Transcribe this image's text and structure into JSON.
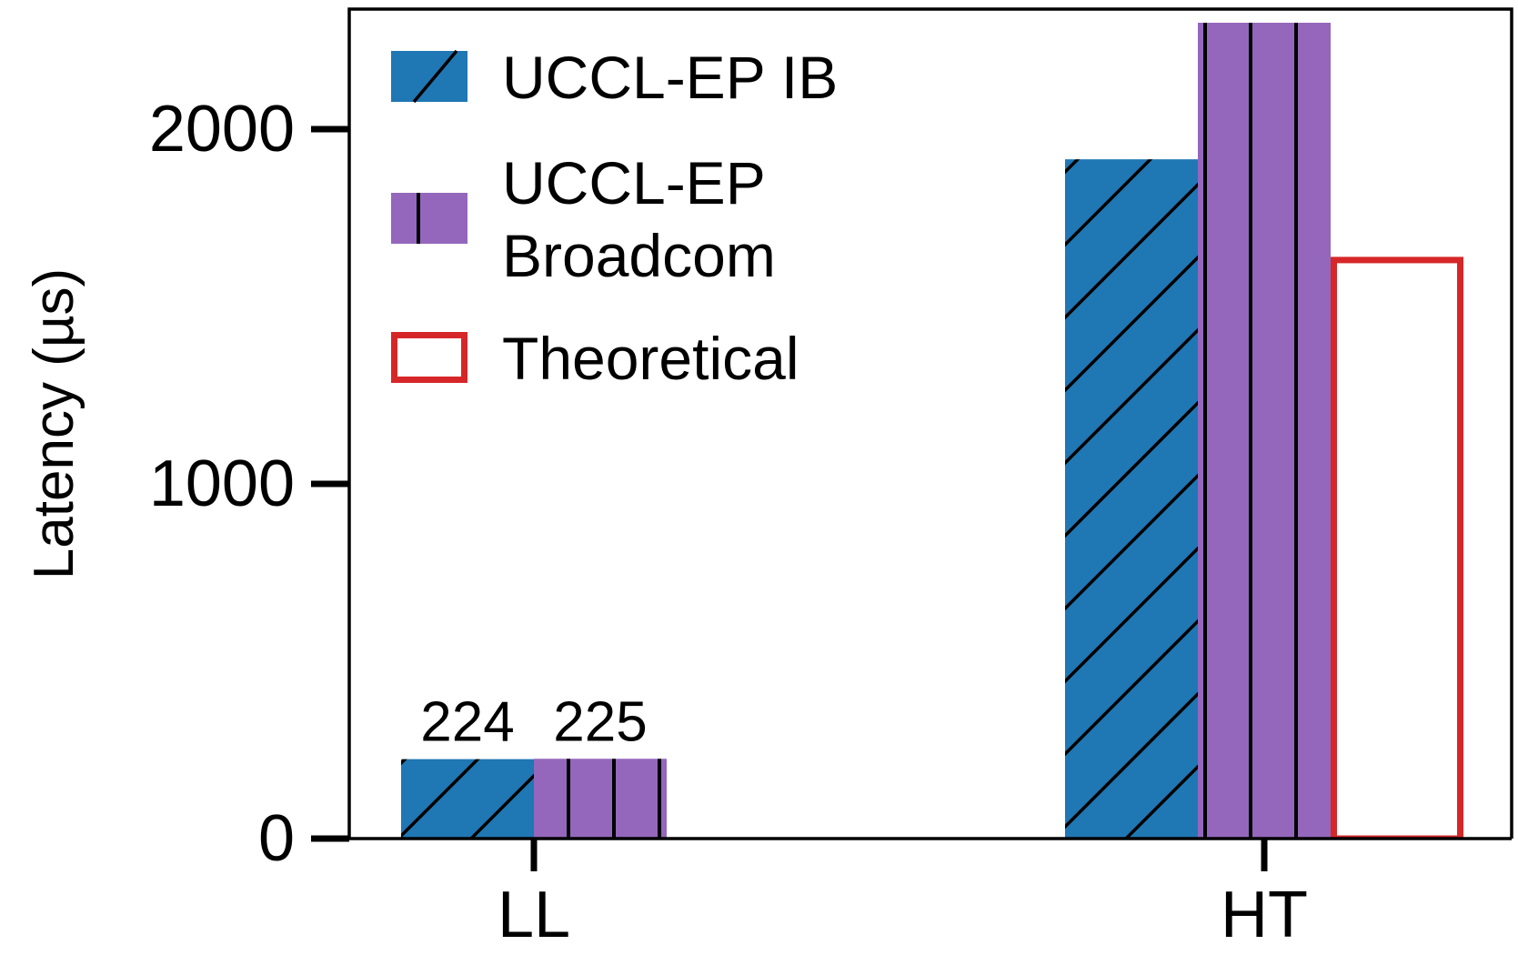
{
  "chart_data": {
    "type": "bar",
    "title": "",
    "xlabel": "",
    "ylabel": "Latency (µs)",
    "categories": [
      "LL",
      "HT"
    ],
    "ylim": [
      0,
      2300
    ],
    "yticks": [
      0,
      1000,
      2000
    ],
    "grid": false,
    "legend_position": "top-left",
    "series": [
      {
        "name": "UCCL-EP IB",
        "values": [
          224,
          1915
        ],
        "data_labels": [
          "224",
          null
        ],
        "color": "#1f77b4",
        "hatch": "diagonal"
      },
      {
        "name": "UCCL-EP Broadcom",
        "legend_lines": [
          "UCCL-EP",
          "Broadcom"
        ],
        "values": [
          225,
          2300
        ],
        "data_labels": [
          "225",
          null
        ],
        "color": "#9467bd",
        "hatch": "vertical"
      },
      {
        "name": "Theoretical",
        "values": [
          null,
          1640
        ],
        "data_labels": [
          null,
          null
        ],
        "color": "#ffffff",
        "edge_color": "#d62728",
        "hatch": "none"
      }
    ]
  }
}
